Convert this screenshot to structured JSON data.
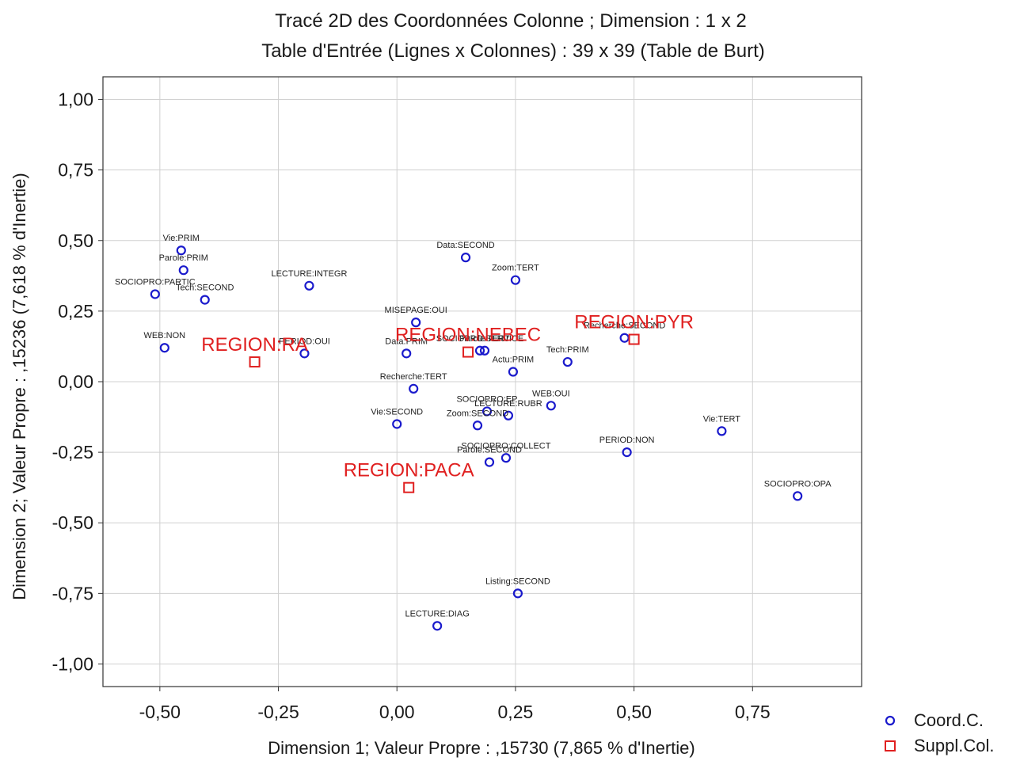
{
  "chart_data": {
    "type": "scatter",
    "title": "Tracé 2D des Coordonnées Colonne ; Dimension :  1 x  2",
    "subtitle": "Table d'Entrée (Lignes x Colonnes) : 39 x 39 (Table de Burt)",
    "xlabel": "Dimension 1; Valeur Propre : ,15730 (7,865  % d'Inertie)",
    "ylabel": "Dimension 2; Valeur Propre : ,15236 (7,618  % d'Inertie)",
    "xlim": [
      -0.62,
      0.98
    ],
    "ylim": [
      -1.08,
      1.08
    ],
    "xticks": [
      -0.5,
      -0.25,
      0.0,
      0.25,
      0.5,
      0.75
    ],
    "xtick_labels": [
      "-0,50",
      "-0,25",
      "0,00",
      "0,25",
      "0,50",
      "0,75"
    ],
    "yticks": [
      1.0,
      0.75,
      0.5,
      0.25,
      0.0,
      -0.25,
      -0.5,
      -0.75,
      -1.0
    ],
    "ytick_labels": [
      "1,00",
      "0,75",
      "0,50",
      "0,25",
      "0,00",
      "-0,25",
      "-0,50",
      "-0,75",
      "-1,00"
    ],
    "grid": true,
    "legend_position": "bottom-right",
    "colors": {
      "coord": "#1a1acc",
      "supp": "#e02020",
      "grid": "#d0d0d0",
      "frame": "#333333"
    },
    "series": [
      {
        "name": "Coord.C.",
        "marker": "circle",
        "points": [
          {
            "label": "Vie:PRIM",
            "x": -0.455,
            "y": 0.465
          },
          {
            "label": "Parole:PRIM",
            "x": -0.45,
            "y": 0.395
          },
          {
            "label": "SOCIOPRO:PARTIC",
            "x": -0.51,
            "y": 0.31
          },
          {
            "label": "Tech:SECOND",
            "x": -0.405,
            "y": 0.29
          },
          {
            "label": "WEB:NON",
            "x": -0.49,
            "y": 0.12
          },
          {
            "label": "LECTURE:INTEGR",
            "x": -0.185,
            "y": 0.34
          },
          {
            "label": "PERIOD:OUI",
            "x": -0.195,
            "y": 0.1
          },
          {
            "label": "Data:SECOND",
            "x": 0.145,
            "y": 0.44
          },
          {
            "label": "Zoom:TERT",
            "x": 0.25,
            "y": 0.36
          },
          {
            "label": "MISEPAGE:OUI",
            "x": 0.04,
            "y": 0.21
          },
          {
            "label": "Data:PRIM",
            "x": 0.02,
            "y": 0.1
          },
          {
            "label": "SOCIOPRO:SERVICE",
            "x": 0.175,
            "y": 0.11
          },
          {
            "label": "Parole:TERT",
            "x": 0.185,
            "y": 0.11
          },
          {
            "label": "Actu:PRIM",
            "x": 0.245,
            "y": 0.035
          },
          {
            "label": "Tech:PRIM",
            "x": 0.36,
            "y": 0.07
          },
          {
            "label": "Recherche:SECOND",
            "x": 0.48,
            "y": 0.155
          },
          {
            "label": "Recherche:TERT",
            "x": 0.035,
            "y": -0.025
          },
          {
            "label": "SOCIOPRO:EP",
            "x": 0.19,
            "y": -0.105
          },
          {
            "label": "LECTURE:RUBR",
            "x": 0.235,
            "y": -0.12
          },
          {
            "label": "WEB:OUI",
            "x": 0.325,
            "y": -0.085
          },
          {
            "label": "Vie:SECOND",
            "x": 0.0,
            "y": -0.15
          },
          {
            "label": "Zoom:SECOND",
            "x": 0.17,
            "y": -0.155
          },
          {
            "label": "Vie:TERT",
            "x": 0.685,
            "y": -0.175
          },
          {
            "label": "PERIOD:NON",
            "x": 0.485,
            "y": -0.25
          },
          {
            "label": "SOCIOPRO:COLLECT",
            "x": 0.23,
            "y": -0.27
          },
          {
            "label": "Parole:SECOND",
            "x": 0.195,
            "y": -0.285
          },
          {
            "label": "SOCIOPRO:OPA",
            "x": 0.845,
            "y": -0.405
          },
          {
            "label": "Listing:SECOND",
            "x": 0.255,
            "y": -0.75
          },
          {
            "label": "LECTURE:DIAG",
            "x": 0.085,
            "y": -0.865
          }
        ]
      },
      {
        "name": "Suppl.Col.",
        "marker": "square",
        "points": [
          {
            "label": "REGION:RA",
            "x": -0.3,
            "y": 0.07
          },
          {
            "label": "REGION:NEBEC",
            "x": 0.15,
            "y": 0.105
          },
          {
            "label": "REGION:PYR",
            "x": 0.5,
            "y": 0.15
          },
          {
            "label": "REGION:PACA",
            "x": 0.025,
            "y": -0.375
          }
        ]
      }
    ]
  }
}
